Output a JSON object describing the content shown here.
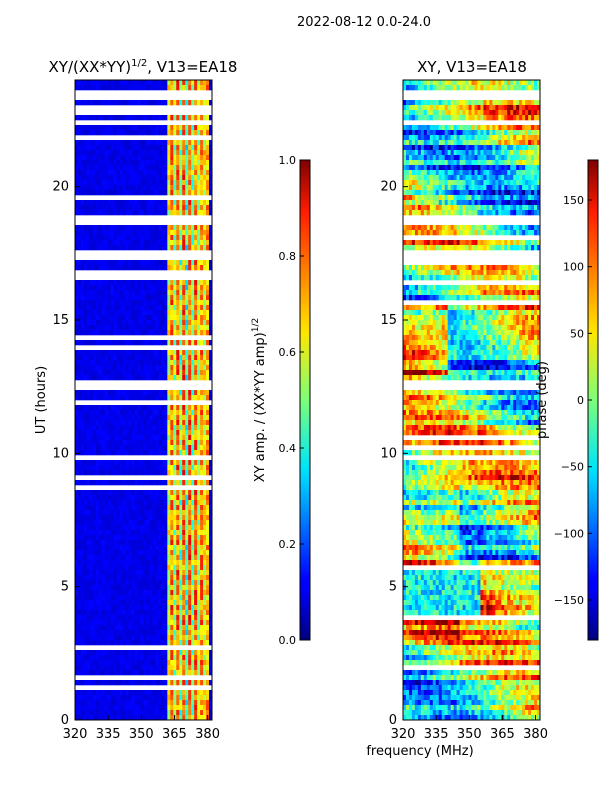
{
  "figure": {
    "suptitle": "2022-08-12 0.0-24.0",
    "shared_xlabel": "frequency (MHz)"
  },
  "chart_data": [
    {
      "type": "heatmap",
      "title": "XY/(XX*YY)",
      "title_superscript": "1/2",
      "title_suffix": ", V13=EA18",
      "xlabel": "",
      "ylabel": "UT (hours)",
      "xlim": [
        320,
        382
      ],
      "ylim": [
        0,
        24
      ],
      "xticks": [
        320,
        335,
        350,
        365,
        380
      ],
      "yticks": [
        0,
        5,
        10,
        15,
        20
      ],
      "colorscale": "jet",
      "colorbar": {
        "label": "XY amp. / (XX*YY amp)",
        "label_superscript": "1/2",
        "range": [
          0.0,
          1.0
        ],
        "ticks": [
          "0.0",
          "0.2",
          "0.4",
          "0.6",
          "0.8",
          "1.0"
        ]
      },
      "data_gaps_ut": [
        [
          23.3,
          23.6
        ],
        [
          22.8,
          23.0
        ],
        [
          18.5,
          18.9
        ],
        [
          17.3,
          17.7
        ],
        [
          16.5,
          16.8
        ],
        [
          13.9,
          14.0
        ],
        [
          12.3,
          12.8
        ],
        [
          9.8,
          9.9
        ],
        [
          5.75,
          5.85
        ],
        [
          1.55,
          1.65
        ]
      ],
      "notes": "Amplitude ratio mostly ~0.05 (dark blue) below 362 MHz; bright RFI columns (0.4-0.8) between ~362 and ~380 MHz."
    },
    {
      "type": "heatmap",
      "title": "XY, V13=EA18",
      "xlabel": "",
      "ylabel": "",
      "xlim": [
        320,
        382
      ],
      "ylim": [
        0,
        24
      ],
      "xticks": [
        320,
        335,
        350,
        365,
        380
      ],
      "yticks": [
        0,
        5,
        10,
        15,
        20
      ],
      "colorscale": "jet",
      "colorbar": {
        "label": "phase (deg)",
        "range": [
          -180,
          180
        ],
        "ticks": [
          "150",
          "100",
          "50",
          "0",
          "−50",
          "−100",
          "−150"
        ]
      },
      "data_gaps_ut": [
        [
          23.3,
          23.6
        ],
        [
          18.6,
          18.9
        ],
        [
          17.3,
          17.7
        ],
        [
          12.3,
          12.8
        ],
        [
          9.8,
          9.9
        ],
        [
          5.75,
          5.85
        ]
      ],
      "notes": "Phase varies widely across band; noisy red/yellow stripes at high UT and around 3-9 h."
    }
  ]
}
